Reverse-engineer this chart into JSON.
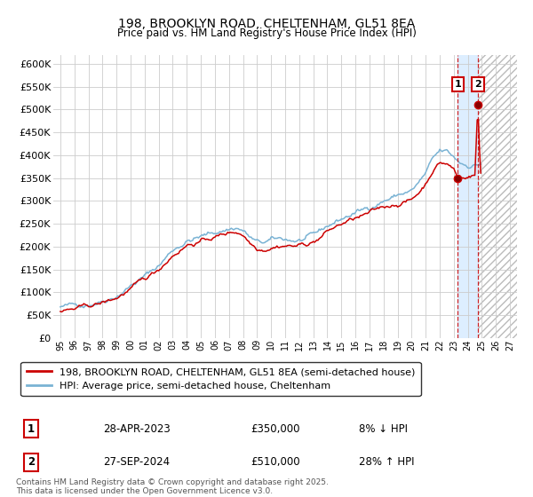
{
  "title_line1": "198, BROOKLYN ROAD, CHELTENHAM, GL51 8EA",
  "title_line2": "Price paid vs. HM Land Registry's House Price Index (HPI)",
  "legend_line1": "198, BROOKLYN ROAD, CHELTENHAM, GL51 8EA (semi-detached house)",
  "legend_line2": "HPI: Average price, semi-detached house, Cheltenham",
  "transaction1_label": "1",
  "transaction1_date": "28-APR-2023",
  "transaction1_price": "£350,000",
  "transaction1_hpi": "8% ↓ HPI",
  "transaction2_label": "2",
  "transaction2_date": "27-SEP-2024",
  "transaction2_price": "£510,000",
  "transaction2_hpi": "28% ↑ HPI",
  "footer": "Contains HM Land Registry data © Crown copyright and database right 2025.\nThis data is licensed under the Open Government Licence v3.0.",
  "hpi_color": "#7ab3d4",
  "price_color": "#cc0000",
  "transaction_color": "#cc0000",
  "highlight_color": "#ddeeff",
  "ylim": [
    0,
    620000
  ],
  "yticks": [
    0,
    50000,
    100000,
    150000,
    200000,
    250000,
    300000,
    350000,
    400000,
    450000,
    500000,
    550000,
    600000
  ],
  "ytick_labels": [
    "£0",
    "£50K",
    "£100K",
    "£150K",
    "£200K",
    "£250K",
    "£300K",
    "£350K",
    "£400K",
    "£450K",
    "£500K",
    "£550K",
    "£600K"
  ],
  "x_start_year": 1995,
  "x_end_year": 2027,
  "transaction1_year": 2023.29,
  "transaction1_price_val": 350000,
  "transaction2_year": 2024.71,
  "transaction2_price_val": 510000
}
